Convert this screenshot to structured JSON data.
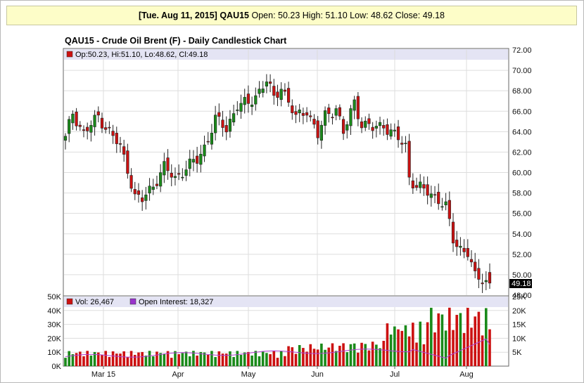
{
  "header": {
    "date_symbol": "[Tue. Aug 11, 2015] QAU15",
    "ohlc": "Open: 50.23 High: 51.10 Low: 48.62 Close: 49.18"
  },
  "chart_title": "QAU15 - Crude Oil Brent (F) - Daily Candlestick Chart",
  "price_legend": "Op:50.23, Hi:51.10, Lo:48.62, Cl:49.18",
  "last_price_label": "49.18",
  "vol_legend": "Vol: 26,467",
  "oi_legend": "Open Interest: 18,327",
  "colors": {
    "up": "#1a8a1a",
    "down": "#cc1111",
    "legend_red": "#cc1111",
    "legend_purple": "#9933cc",
    "oi_line": "#b040d0"
  },
  "chart_data": {
    "type": "candlestick",
    "price_axis": {
      "min": 48,
      "max": 72,
      "ticks": [
        "72.00",
        "70.00",
        "68.00",
        "66.00",
        "64.00",
        "62.00",
        "60.00",
        "58.00",
        "56.00",
        "54.00",
        "52.00",
        "50.00",
        "48.00"
      ]
    },
    "volume_axis_left": {
      "min": 0,
      "max": 50000,
      "ticks": [
        "50K",
        "40K",
        "30K",
        "20K",
        "10K",
        "0K"
      ]
    },
    "volume_axis_right": {
      "min": 0,
      "max": 25000,
      "ticks": [
        "25K",
        "20K",
        "15K",
        "10K",
        "5K"
      ]
    },
    "x_labels": [
      "Mar 15",
      "Apr",
      "May",
      "Jun",
      "Jul",
      "Aug"
    ],
    "last_bar": {
      "open": 50.23,
      "high": 51.1,
      "low": 48.62,
      "close": 49.18,
      "volume": 26467,
      "open_interest": 18327
    }
  }
}
